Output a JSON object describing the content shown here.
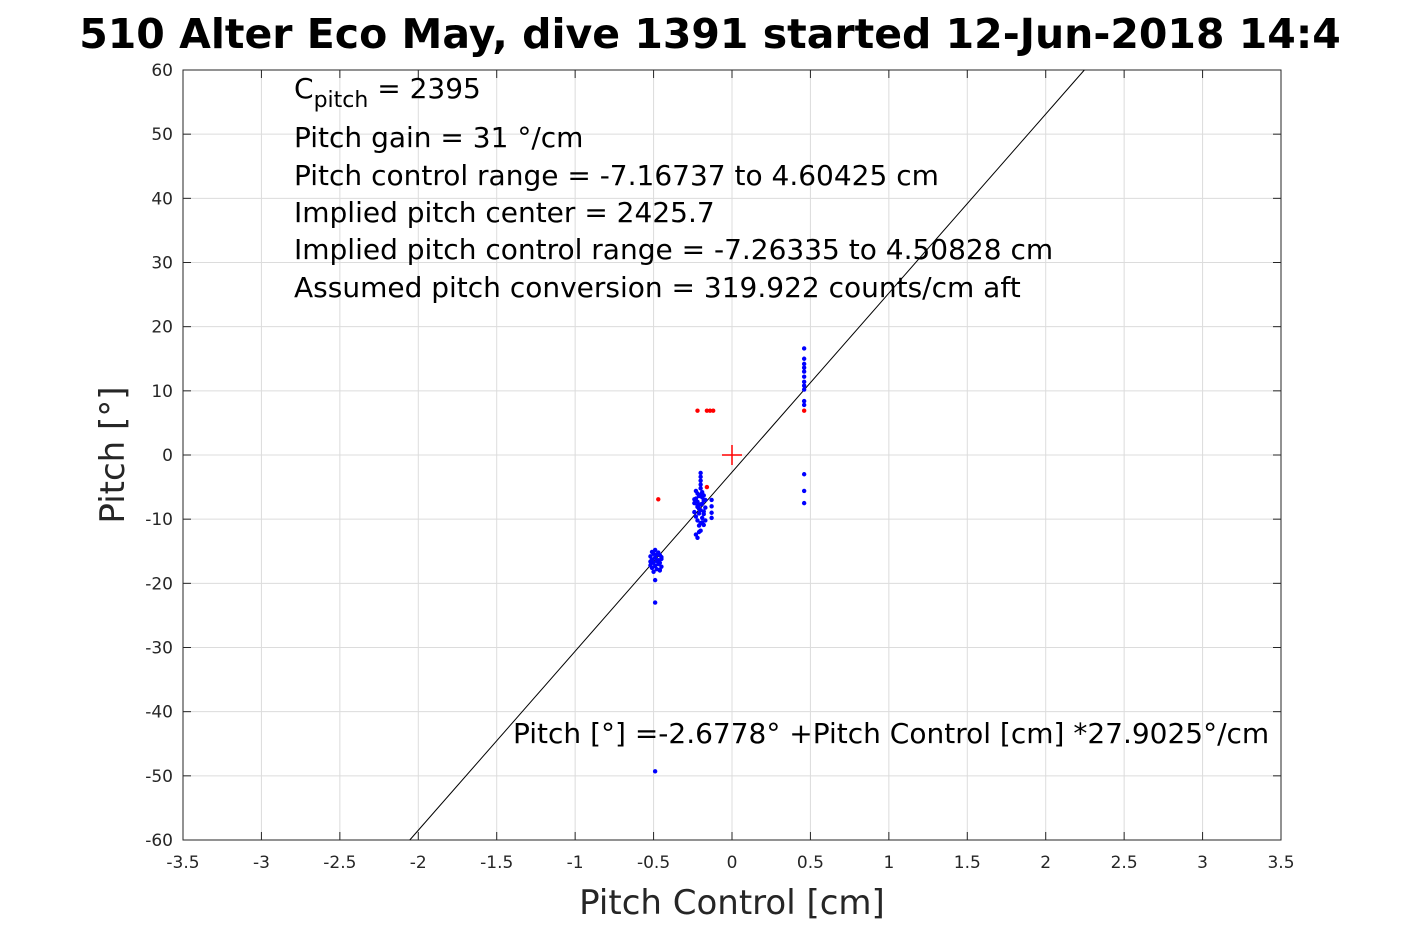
{
  "chart_data": {
    "type": "scatter",
    "title": "510 Alter Eco May, dive 1391 started 12-Jun-2018 14:4",
    "xlabel": "Pitch Control [cm]",
    "ylabel": "Pitch [°]",
    "xlim": [
      -3.5,
      3.5
    ],
    "ylim": [
      -60,
      60
    ],
    "xticks": [
      "-3.5",
      "-3",
      "-2.5",
      "-2",
      "-1.5",
      "-1",
      "-0.5",
      "0",
      "0.5",
      "1",
      "1.5",
      "2",
      "2.5",
      "3",
      "3.5"
    ],
    "yticks": [
      "60",
      "50",
      "40",
      "30",
      "20",
      "10",
      "0",
      "-10",
      "-20",
      "-30",
      "-40",
      "-50",
      "-60"
    ],
    "grid": true,
    "annotations": {
      "cpitch_symbol": "C",
      "cpitch_subscript": "pitch",
      "cpitch_value": " = 2395",
      "lines": [
        "Pitch gain = 31 °/cm",
        "Pitch control range = -7.16737 to 4.60425 cm",
        "Implied pitch center = 2425.7",
        "Implied pitch control range = -7.26335 to 4.50828 cm",
        "Assumed pitch conversion = 319.922 counts/cm aft"
      ],
      "fit_equation": "Pitch [°] =-2.6778° +Pitch Control [cm] *27.9025°/cm"
    },
    "fit_line": {
      "intercept": -2.6778,
      "slope": 27.9025,
      "color": "#000000"
    },
    "center_marker": {
      "x": 0,
      "y": 0,
      "color": "#ff0000"
    },
    "series": [
      {
        "color": "#0000ff",
        "points": [
          [
            -0.52,
            -15.8
          ],
          [
            -0.51,
            -16.3
          ],
          [
            -0.5,
            -16.8
          ],
          [
            -0.52,
            -17.2
          ],
          [
            -0.51,
            -17.6
          ],
          [
            -0.5,
            -15.4
          ],
          [
            -0.49,
            -16.0
          ],
          [
            -0.48,
            -16.5
          ],
          [
            -0.47,
            -17.0
          ],
          [
            -0.46,
            -15.6
          ],
          [
            -0.45,
            -16.2
          ],
          [
            -0.48,
            -17.8
          ],
          [
            -0.5,
            -18.2
          ],
          [
            -0.49,
            -14.8
          ],
          [
            -0.47,
            -15.2
          ],
          [
            -0.46,
            -16.8
          ],
          [
            -0.45,
            -17.4
          ],
          [
            -0.52,
            -16.6
          ],
          [
            -0.51,
            -15.1
          ],
          [
            -0.49,
            -17.3
          ],
          [
            -0.48,
            -15.5
          ],
          [
            -0.47,
            -16.4
          ],
          [
            -0.46,
            -17.9
          ],
          [
            -0.45,
            -15.9
          ],
          [
            -0.49,
            -19.5
          ],
          [
            -0.49,
            -23.0
          ],
          [
            -0.46,
            -18.0
          ],
          [
            -0.49,
            -49.3
          ],
          [
            -0.24,
            -7.5
          ],
          [
            -0.23,
            -6.8
          ],
          [
            -0.22,
            -7.9
          ],
          [
            -0.21,
            -8.4
          ],
          [
            -0.2,
            -6.2
          ],
          [
            -0.19,
            -5.8
          ],
          [
            -0.18,
            -7.1
          ],
          [
            -0.24,
            -8.9
          ],
          [
            -0.23,
            -9.6
          ],
          [
            -0.22,
            -10.2
          ],
          [
            -0.21,
            -11.0
          ],
          [
            -0.2,
            -11.8
          ],
          [
            -0.23,
            -12.4
          ],
          [
            -0.22,
            -12.9
          ],
          [
            -0.21,
            -12.0
          ],
          [
            -0.2,
            -10.6
          ],
          [
            -0.19,
            -9.8
          ],
          [
            -0.18,
            -8.8
          ],
          [
            -0.2,
            -5.2
          ],
          [
            -0.2,
            -4.6
          ],
          [
            -0.2,
            -4.0
          ],
          [
            -0.2,
            -3.4
          ],
          [
            -0.2,
            -2.8
          ],
          [
            -0.19,
            -6.6
          ],
          [
            -0.22,
            -7.3
          ],
          [
            -0.21,
            -6.4
          ],
          [
            -0.19,
            -7.6
          ],
          [
            -0.18,
            -9.2
          ],
          [
            -0.17,
            -7.0
          ],
          [
            -0.17,
            -8.2
          ],
          [
            -0.23,
            -5.6
          ],
          [
            -0.22,
            -8.1
          ],
          [
            -0.21,
            -9.1
          ],
          [
            -0.2,
            -7.7
          ],
          [
            -0.19,
            -10.5
          ],
          [
            -0.18,
            -10.9
          ],
          [
            -0.17,
            -10.2
          ],
          [
            -0.24,
            -6.9
          ],
          [
            -0.22,
            -6.0
          ],
          [
            -0.2,
            -8.6
          ],
          [
            -0.18,
            -6.3
          ],
          [
            -0.21,
            -7.8
          ],
          [
            -0.13,
            -7.0
          ],
          [
            -0.13,
            -8.0
          ],
          [
            -0.13,
            -9.0
          ],
          [
            -0.13,
            -9.8
          ],
          [
            0.46,
            16.6
          ],
          [
            0.46,
            15.0
          ],
          [
            0.46,
            14.2
          ],
          [
            0.46,
            13.6
          ],
          [
            0.46,
            13.0
          ],
          [
            0.46,
            12.2
          ],
          [
            0.46,
            11.4
          ],
          [
            0.46,
            10.8
          ],
          [
            0.46,
            10.2
          ],
          [
            0.46,
            8.4
          ],
          [
            0.46,
            7.8
          ],
          [
            0.46,
            -3.0
          ],
          [
            0.46,
            -5.6
          ],
          [
            0.46,
            -7.5
          ]
        ]
      },
      {
        "color": "#ff0000",
        "points": [
          [
            -0.22,
            6.9
          ],
          [
            -0.16,
            6.9
          ],
          [
            -0.14,
            6.9
          ],
          [
            -0.12,
            6.9
          ],
          [
            0.46,
            6.9
          ],
          [
            -0.47,
            -6.9
          ],
          [
            -0.16,
            -5.0
          ]
        ]
      }
    ]
  }
}
